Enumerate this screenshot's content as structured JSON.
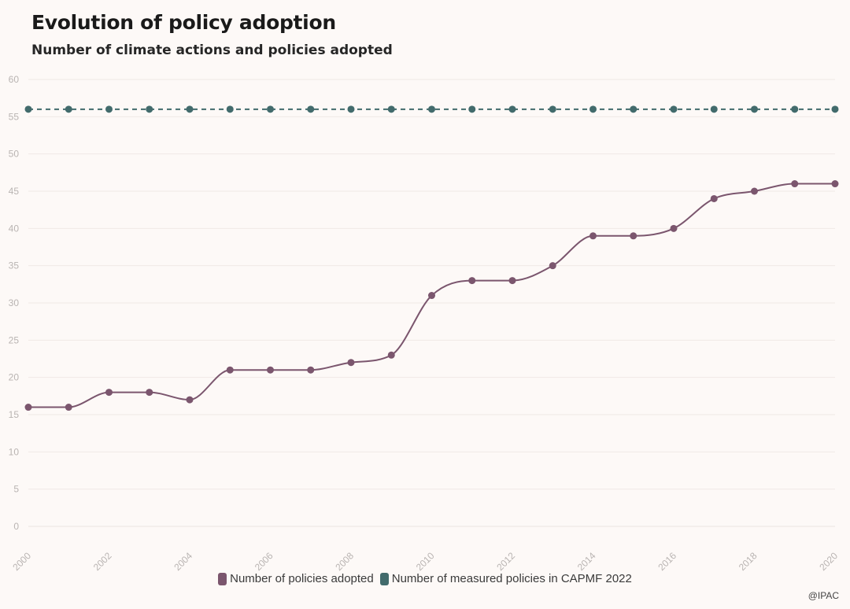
{
  "chart_data": {
    "type": "line",
    "title": "Evolution of policy adoption",
    "subtitle": "Number of climate actions and policies adopted",
    "xlabel": "",
    "ylabel": "",
    "x": [
      2000,
      2001,
      2002,
      2003,
      2004,
      2005,
      2006,
      2007,
      2008,
      2009,
      2010,
      2011,
      2012,
      2013,
      2014,
      2015,
      2016,
      2017,
      2018,
      2019,
      2020
    ],
    "x_tick_labels": [
      "2000",
      "2002",
      "2004",
      "2006",
      "2008",
      "2010",
      "2012",
      "2014",
      "2016",
      "2018",
      "2020"
    ],
    "y_tick_labels": [
      "0",
      "5",
      "10",
      "15",
      "20",
      "25",
      "30",
      "35",
      "40",
      "45",
      "50",
      "55",
      "60"
    ],
    "ylim": [
      0,
      60
    ],
    "grid": true,
    "legend_position": "bottom",
    "series": [
      {
        "name": "Number of policies adopted",
        "color": "#7b566e",
        "style": "solid-smooth",
        "values": [
          16,
          16,
          18,
          18,
          17,
          21,
          21,
          21,
          22,
          23,
          31,
          33,
          33,
          35,
          39,
          39,
          40,
          44,
          45,
          46,
          46
        ]
      },
      {
        "name": "Number of measured policies in CAPMF 2022",
        "color": "#426b6c",
        "style": "dashed",
        "values": [
          56,
          56,
          56,
          56,
          56,
          56,
          56,
          56,
          56,
          56,
          56,
          56,
          56,
          56,
          56,
          56,
          56,
          56,
          56,
          56,
          56
        ]
      }
    ]
  },
  "credit": "@IPAC"
}
